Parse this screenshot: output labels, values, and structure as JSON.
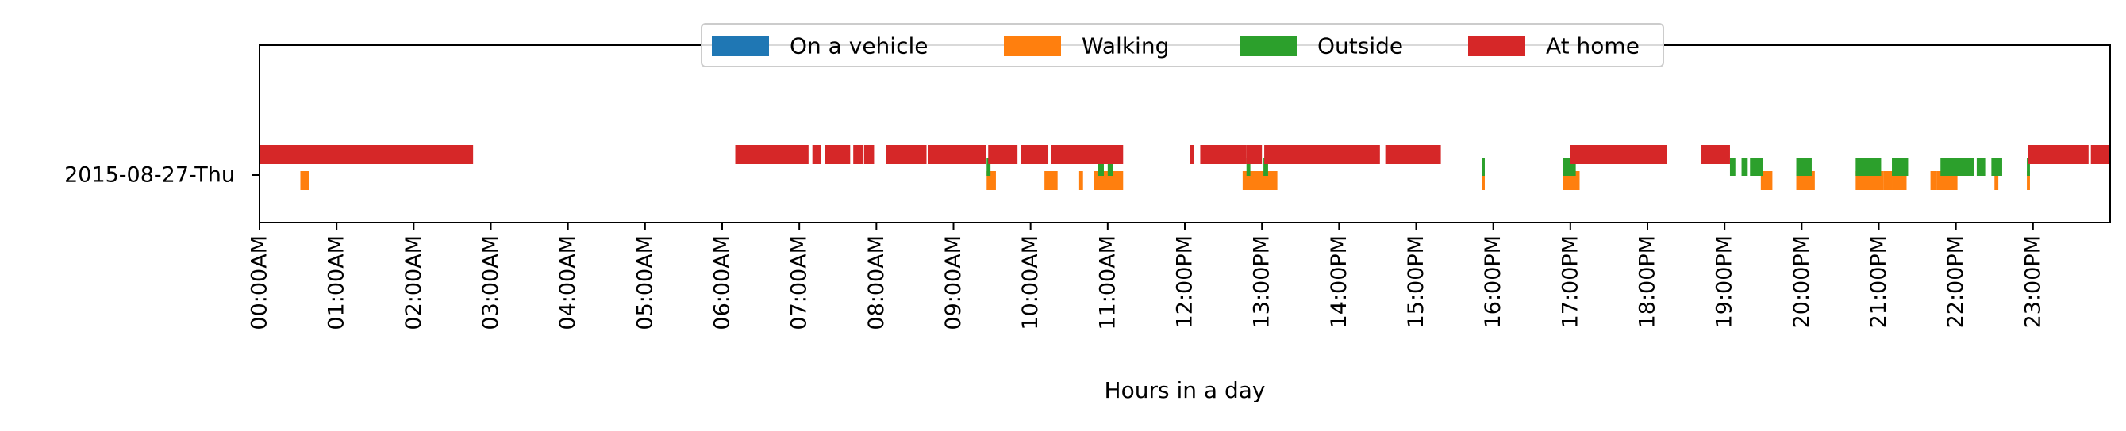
{
  "chart_data": {
    "type": "timeline",
    "xlabel": "Hours in a day",
    "xlim": [
      0,
      24
    ],
    "row_label": "2015-08-27-Thu",
    "x_tick_labels": [
      "00:00AM",
      "01:00AM",
      "02:00AM",
      "03:00AM",
      "04:00AM",
      "05:00AM",
      "06:00AM",
      "07:00AM",
      "08:00AM",
      "09:00AM",
      "10:00AM",
      "11:00AM",
      "12:00PM",
      "13:00PM",
      "14:00PM",
      "15:00PM",
      "16:00PM",
      "17:00PM",
      "18:00PM",
      "19:00PM",
      "20:00PM",
      "21:00PM",
      "22:00PM",
      "23:00PM"
    ],
    "legend_position": "top-center",
    "series": [
      {
        "name": "On a vehicle",
        "color": "#1f77b4",
        "intervals": []
      },
      {
        "name": "Walking",
        "color": "#ff7f0e",
        "intervals": [
          [
            0.53,
            0.64
          ],
          [
            9.43,
            9.55
          ],
          [
            10.18,
            10.35
          ],
          [
            10.63,
            10.68
          ],
          [
            10.82,
            11.2
          ],
          [
            12.75,
            13.2
          ],
          [
            15.85,
            15.89
          ],
          [
            16.9,
            17.12
          ],
          [
            19.47,
            19.62
          ],
          [
            19.93,
            20.17
          ],
          [
            20.7,
            21.06
          ],
          [
            21.06,
            21.18
          ],
          [
            21.18,
            21.36
          ],
          [
            21.67,
            21.75
          ],
          [
            21.75,
            22.02
          ],
          [
            22.5,
            22.55
          ],
          [
            22.92,
            22.96
          ]
        ]
      },
      {
        "name": "Outside",
        "color": "#2ca02c",
        "intervals": [
          [
            9.43,
            9.48
          ],
          [
            10.87,
            10.95
          ],
          [
            11.0,
            11.07
          ],
          [
            12.8,
            12.85
          ],
          [
            13.02,
            13.08
          ],
          [
            15.85,
            15.89
          ],
          [
            16.9,
            17.07
          ],
          [
            19.07,
            19.14
          ],
          [
            19.22,
            19.3
          ],
          [
            19.33,
            19.5
          ],
          [
            19.93,
            20.13
          ],
          [
            20.7,
            21.03
          ],
          [
            21.17,
            21.38
          ],
          [
            21.8,
            22.23
          ],
          [
            22.27,
            22.38
          ],
          [
            22.46,
            22.6
          ],
          [
            22.92,
            22.96
          ]
        ]
      },
      {
        "name": "At home",
        "color": "#d62728",
        "intervals": [
          [
            0.0,
            2.77
          ],
          [
            6.17,
            7.12
          ],
          [
            7.17,
            7.28
          ],
          [
            7.33,
            7.66
          ],
          [
            7.7,
            7.83
          ],
          [
            7.84,
            7.97
          ],
          [
            8.13,
            8.65
          ],
          [
            8.67,
            9.42
          ],
          [
            9.45,
            9.83
          ],
          [
            9.87,
            10.23
          ],
          [
            10.27,
            11.2
          ],
          [
            12.07,
            12.12
          ],
          [
            12.2,
            12.8
          ],
          [
            12.8,
            13.0
          ],
          [
            13.03,
            14.53
          ],
          [
            14.6,
            15.32
          ],
          [
            17.0,
            18.25
          ],
          [
            18.7,
            19.07
          ],
          [
            22.93,
            23.72
          ],
          [
            23.75,
            24.0
          ]
        ]
      }
    ]
  }
}
